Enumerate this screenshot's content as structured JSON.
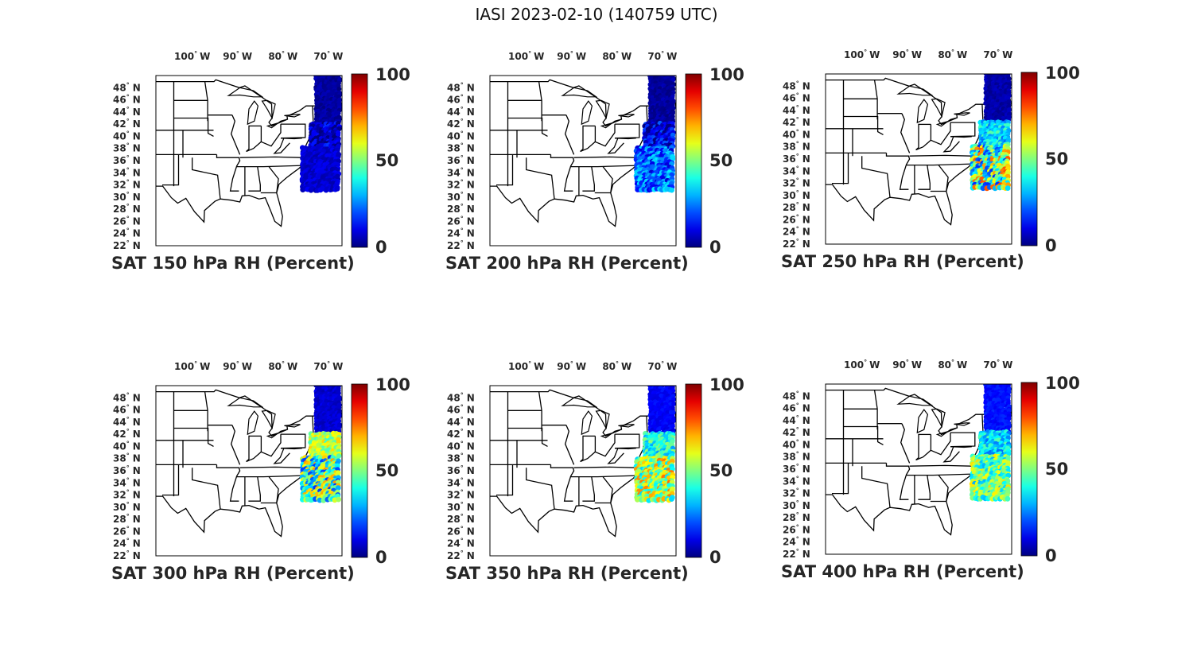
{
  "figure": {
    "title": "IASI 2023-02-10 (140759 UTC)"
  },
  "axes": {
    "lon_ticks": [
      {
        "value": -100,
        "num": "100",
        "hem": "W"
      },
      {
        "value": -90,
        "num": "90",
        "hem": "W"
      },
      {
        "value": -80,
        "num": "80",
        "hem": "W"
      },
      {
        "value": -70,
        "num": "70",
        "hem": "W"
      }
    ],
    "lat_ticks": [
      {
        "value": 48,
        "num": "48",
        "hem": "N"
      },
      {
        "value": 46,
        "num": "46",
        "hem": "N"
      },
      {
        "value": 44,
        "num": "44",
        "hem": "N"
      },
      {
        "value": 42,
        "num": "42",
        "hem": "N"
      },
      {
        "value": 40,
        "num": "40",
        "hem": "N"
      },
      {
        "value": 38,
        "num": "38",
        "hem": "N"
      },
      {
        "value": 36,
        "num": "36",
        "hem": "N"
      },
      {
        "value": 34,
        "num": "34",
        "hem": "N"
      },
      {
        "value": 32,
        "num": "32",
        "hem": "N"
      },
      {
        "value": 30,
        "num": "30",
        "hem": "N"
      },
      {
        "value": 28,
        "num": "28",
        "hem": "N"
      },
      {
        "value": 26,
        "num": "26",
        "hem": "N"
      },
      {
        "value": 24,
        "num": "24",
        "hem": "N"
      },
      {
        "value": 22,
        "num": "22",
        "hem": "N"
      }
    ],
    "lon_range": [
      -108,
      -67
    ],
    "lat_range": [
      22,
      50
    ]
  },
  "colorbar": {
    "min_label": "0",
    "mid_label": "50",
    "max_label": "100",
    "colormap": "jet",
    "range": [
      0,
      100
    ]
  },
  "chart_data": [
    {
      "type": "scatter",
      "title": "SAT 150 hPa RH (Percent)",
      "field": "RH",
      "level_hpa": 150,
      "swath": {
        "north": [
          50,
          42
        ],
        "mid": [
          42,
          38
        ],
        "south": [
          38,
          31
        ]
      },
      "rh_north": 3,
      "rh_mid": 6,
      "rh_south": 8,
      "rh_south_spread": 4
    },
    {
      "type": "scatter",
      "title": "SAT 200 hPa RH (Percent)",
      "field": "RH",
      "level_hpa": 200,
      "swath": {
        "north": [
          50,
          42
        ],
        "mid": [
          42,
          38
        ],
        "south": [
          38,
          31
        ]
      },
      "rh_north": 3,
      "rh_mid": 10,
      "rh_south": 22,
      "rh_south_spread": 14
    },
    {
      "type": "scatter",
      "title": "SAT 250 hPa RH (Percent)",
      "field": "RH",
      "level_hpa": 250,
      "swath": {
        "north": [
          50,
          42
        ],
        "mid": [
          42,
          38
        ],
        "south": [
          38,
          31
        ]
      },
      "rh_north": 4,
      "rh_mid": 35,
      "rh_south": 48,
      "rh_south_spread": 32
    },
    {
      "type": "scatter",
      "title": "SAT 300 hPa RH (Percent)",
      "field": "RH",
      "level_hpa": 300,
      "swath": {
        "north": [
          50,
          42
        ],
        "mid": [
          42,
          38
        ],
        "south": [
          38,
          31
        ]
      },
      "rh_north": 8,
      "rh_mid": 55,
      "rh_south": 45,
      "rh_south_spread": 28
    },
    {
      "type": "scatter",
      "title": "SAT 350 hPa RH (Percent)",
      "field": "RH",
      "level_hpa": 350,
      "swath": {
        "north": [
          50,
          42
        ],
        "mid": [
          42,
          38
        ],
        "south": [
          38,
          31
        ]
      },
      "rh_north": 12,
      "rh_mid": 40,
      "rh_south": 55,
      "rh_south_spread": 22
    },
    {
      "type": "scatter",
      "title": "SAT 400 hPa RH (Percent)",
      "field": "RH",
      "level_hpa": 400,
      "swath": {
        "north": [
          50,
          42
        ],
        "mid": [
          42,
          38
        ],
        "south": [
          38,
          31
        ]
      },
      "rh_north": 14,
      "rh_mid": 35,
      "rh_south": 48,
      "rh_south_spread": 18
    }
  ]
}
